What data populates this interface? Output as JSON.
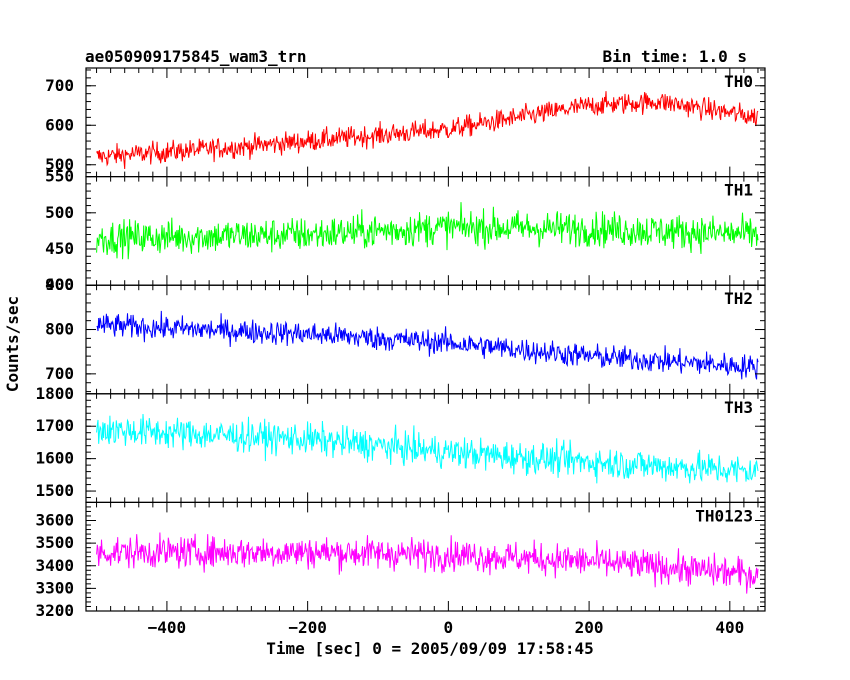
{
  "header": {
    "title": "ae050909175845_wam3_trn",
    "bin_time": "Bin time: 1.0 s"
  },
  "chart_data": {
    "type": "line",
    "title": "ae050909175845_wam3_trn",
    "subtitle": "Bin time: 1.0 s",
    "xlabel": "Time [sec] 0 = 2005/09/09 17:58:45",
    "ylabel": "Counts/sec",
    "xlim": [
      -515,
      450
    ],
    "x_range": [
      -500,
      440
    ],
    "x_ticks": [
      -400,
      -200,
      0,
      200,
      400
    ],
    "x_tick_labels": [
      "−400",
      "−200",
      "0",
      "200",
      "400"
    ],
    "grid": false,
    "panels": [
      {
        "name": "TH0",
        "color": "#ff0000",
        "ylim": [
          470,
          745
        ],
        "y_ticks": [
          500,
          600,
          700
        ],
        "y_tick_labels": [
          "500",
          "600",
          "700"
        ],
        "trend": [
          [
            -500,
            520
          ],
          [
            -300,
            545
          ],
          [
            0,
            590
          ],
          [
            200,
            650
          ],
          [
            300,
            660
          ],
          [
            440,
            620
          ]
        ],
        "noise": 25
      },
      {
        "name": "TH1",
        "color": "#00ff00",
        "ylim": [
          400,
          550
        ],
        "y_ticks": [
          400,
          450,
          500,
          550
        ],
        "y_tick_labels": [
          "400",
          "450",
          "500",
          "550"
        ],
        "trend": [
          [
            -500,
            465
          ],
          [
            -200,
            470
          ],
          [
            0,
            480
          ],
          [
            200,
            478
          ],
          [
            440,
            470
          ]
        ],
        "noise": 22
      },
      {
        "name": "TH2",
        "color": "#0000ff",
        "ylim": [
          655,
          900
        ],
        "y_ticks": [
          700,
          800,
          900
        ],
        "y_tick_labels": [
          "700",
          "800",
          "900"
        ],
        "trend": [
          [
            -500,
            810
          ],
          [
            -200,
            790
          ],
          [
            0,
            770
          ],
          [
            200,
            740
          ],
          [
            440,
            715
          ]
        ],
        "noise": 25
      },
      {
        "name": "TH3",
        "color": "#00ffff",
        "ylim": [
          1465,
          1800
        ],
        "y_ticks": [
          1500,
          1600,
          1700,
          1800
        ],
        "y_tick_labels": [
          "1500",
          "1600",
          "1700",
          "1800"
        ],
        "trend": [
          [
            -500,
            1690
          ],
          [
            -200,
            1660
          ],
          [
            0,
            1620
          ],
          [
            200,
            1590
          ],
          [
            440,
            1560
          ]
        ],
        "noise": 45
      },
      {
        "name": "TH0123",
        "color": "#ff00ff",
        "ylim": [
          3200,
          3680
        ],
        "y_ticks": [
          3200,
          3300,
          3400,
          3500,
          3600
        ],
        "y_tick_labels": [
          "3200",
          "3300",
          "3400",
          "3500",
          "3600"
        ],
        "trend": [
          [
            -500,
            3460
          ],
          [
            -200,
            3460
          ],
          [
            0,
            3450
          ],
          [
            200,
            3420
          ],
          [
            440,
            3360
          ]
        ],
        "noise": 65
      }
    ]
  }
}
